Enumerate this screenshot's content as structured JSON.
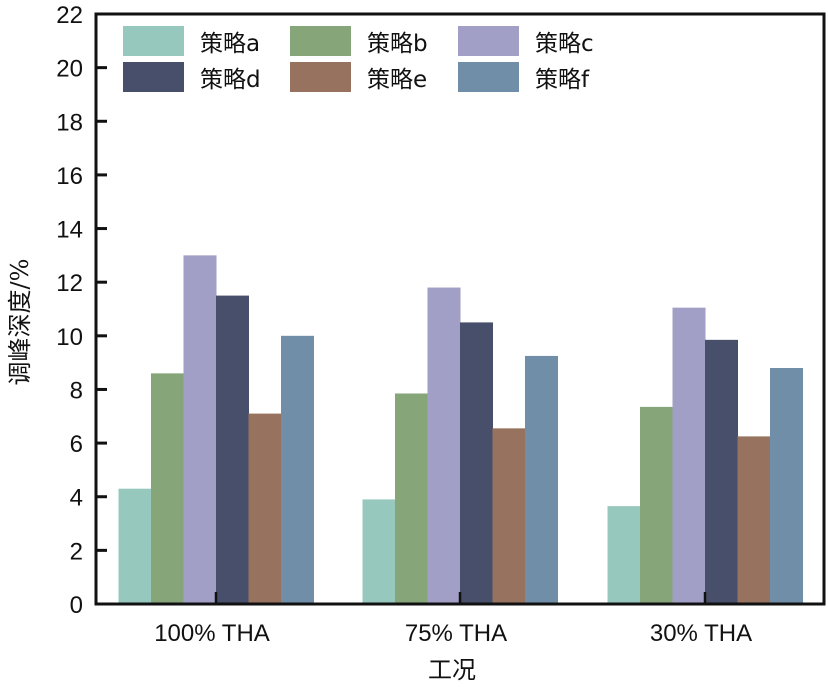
{
  "chart_data": {
    "type": "bar",
    "title": "",
    "xlabel": "工况",
    "ylabel": "调峰深度/%",
    "ylim": [
      0,
      22
    ],
    "yticks": [
      0,
      2,
      4,
      6,
      8,
      10,
      12,
      14,
      16,
      18,
      20,
      22
    ],
    "grid": false,
    "legend_position": "top-left",
    "legend_columns": 3,
    "categories": [
      "100% THA",
      "75% THA",
      "30% THA"
    ],
    "series": [
      {
        "name": "策略a",
        "color": "#96c8bd",
        "values": [
          4.3,
          3.9,
          3.65
        ]
      },
      {
        "name": "策略b",
        "color": "#86a579",
        "values": [
          8.6,
          7.85,
          7.35
        ]
      },
      {
        "name": "策略c",
        "color": "#a29fc6",
        "values": [
          13.0,
          11.8,
          11.05
        ]
      },
      {
        "name": "策略d",
        "color": "#474f6a",
        "values": [
          11.5,
          10.5,
          9.85
        ]
      },
      {
        "name": "策略e",
        "color": "#97735f",
        "values": [
          7.1,
          6.55,
          6.25
        ]
      },
      {
        "name": "策略f",
        "color": "#718ea9",
        "values": [
          10.0,
          9.25,
          8.8
        ]
      }
    ]
  }
}
